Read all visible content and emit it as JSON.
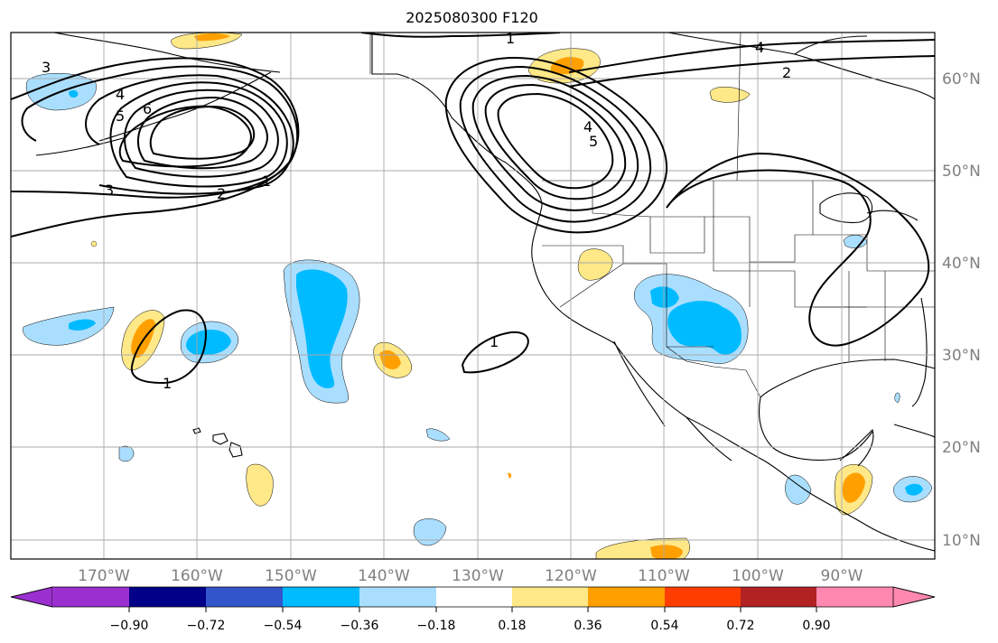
{
  "title": "2025080300 F120",
  "map": {
    "lon_range": [
      -180,
      -81
    ],
    "lat_range": [
      8,
      65
    ],
    "lon_labels": [
      "170°W",
      "160°W",
      "150°W",
      "140°W",
      "130°W",
      "120°W",
      "110°W",
      "100°W",
      "90°W"
    ],
    "lat_labels": [
      "60°N",
      "50°N",
      "40°N",
      "30°N",
      "20°N",
      "10°N"
    ],
    "contour_labels": [
      "1",
      "2",
      "3",
      "4",
      "5",
      "6",
      "1",
      "2",
      "3",
      "4",
      "5",
      "4",
      "1",
      "1"
    ],
    "colors": {
      "ocean": "#ffffff",
      "coast": "#000000",
      "grid": "#aaaaaa",
      "contour": "#000000"
    }
  },
  "colorbar": {
    "colors": [
      "#9b30d0",
      "#000088",
      "#3355cc",
      "#00bbff",
      "#aadeff",
      "#ffffff",
      "#ffe888",
      "#ffa000",
      "#ff3d00",
      "#b22222",
      "#ff88b0"
    ],
    "ticks": [
      "−0.90",
      "−0.72",
      "−0.54",
      "−0.36",
      "−0.18",
      "0.18",
      "0.36",
      "0.54",
      "0.72",
      "0.90"
    ]
  }
}
